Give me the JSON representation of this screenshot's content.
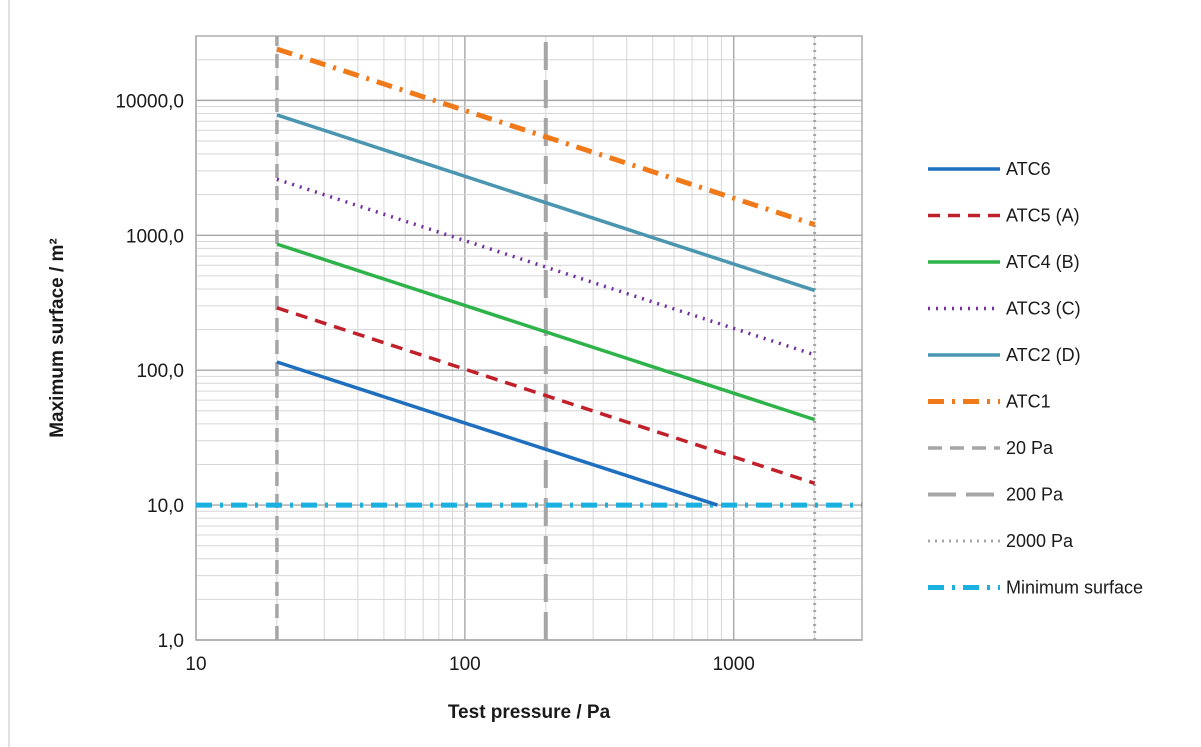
{
  "chart_data": {
    "type": "line",
    "xlabel": "Test pressure / Pa",
    "ylabel": "Maximum surface / m²",
    "xscale": "log",
    "yscale": "log",
    "xlim": [
      10,
      3000
    ],
    "ylim": [
      1,
      30000
    ],
    "x_tick_labels": [
      "10",
      "100",
      "1000"
    ],
    "y_tick_labels": [
      "1,0",
      "10,0",
      "100,0",
      "1000,0",
      "10000,0"
    ],
    "grid": true,
    "legend_position": "right",
    "series": [
      {
        "name": "ATC6",
        "color": "#1f6fbf",
        "style": "solid",
        "x": [
          20,
          870
        ],
        "y": [
          115,
          10
        ]
      },
      {
        "name": "ATC5 (A)",
        "color": "#c0202a",
        "style": "dashed",
        "x": [
          20,
          2000
        ],
        "y": [
          290,
          14.5
        ]
      },
      {
        "name": "ATC4 (B)",
        "color": "#2eb34a",
        "style": "solid",
        "x": [
          20,
          2000
        ],
        "y": [
          860,
          43
        ]
      },
      {
        "name": "ATC3 (C)",
        "color": "#7030a0",
        "style": "dotted",
        "x": [
          20,
          2000
        ],
        "y": [
          2600,
          130
        ]
      },
      {
        "name": "ATC2 (D)",
        "color": "#4a96b0",
        "style": "solid",
        "x": [
          20,
          2000
        ],
        "y": [
          7800,
          390
        ]
      },
      {
        "name": "ATC1",
        "color": "#f07a1a",
        "style": "dashdot",
        "x": [
          20,
          2000
        ],
        "y": [
          24000,
          1200
        ]
      },
      {
        "name": "20 Pa",
        "color": "#a6a6a6",
        "style": "dashed",
        "x": [
          20,
          20
        ],
        "y": [
          1,
          30000
        ]
      },
      {
        "name": "200 Pa",
        "color": "#a6a6a6",
        "style": "longdash",
        "x": [
          200,
          200
        ],
        "y": [
          1,
          30000
        ]
      },
      {
        "name": "2000 Pa",
        "color": "#a6a6a6",
        "style": "dotted",
        "x": [
          2000,
          2000
        ],
        "y": [
          1,
          30000
        ]
      },
      {
        "name": "Minimum surface",
        "color": "#1ab0e0",
        "style": "dashdot",
        "x": [
          10,
          3000
        ],
        "y": [
          10,
          10
        ]
      }
    ]
  }
}
